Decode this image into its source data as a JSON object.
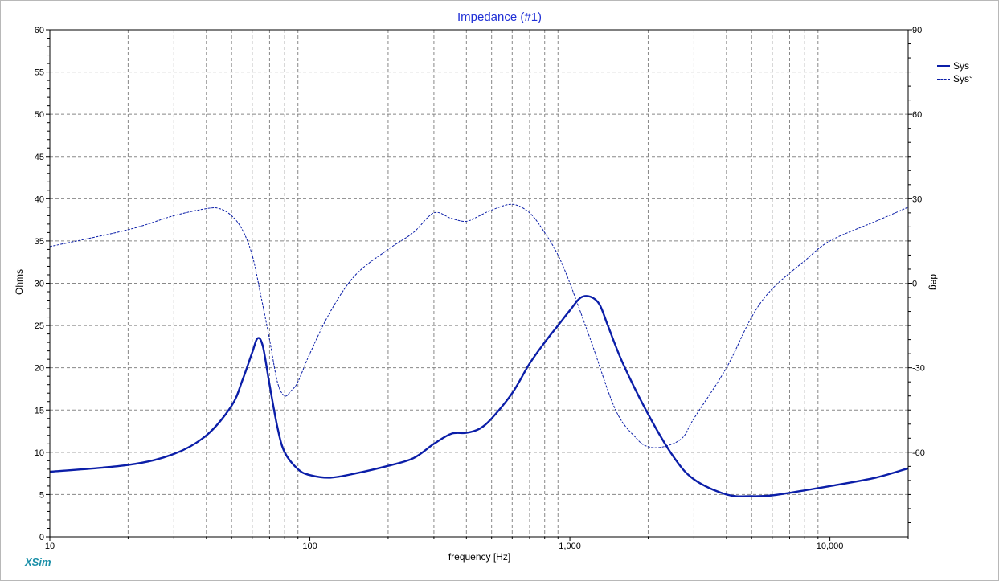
{
  "chart_data": {
    "type": "line",
    "title": "Impedance (#1)",
    "xlabel": "frequency [Hz]",
    "ylabel": "Ohms",
    "y2label": "deg",
    "xscale": "log",
    "xlim": [
      10,
      20000
    ],
    "ylim": [
      0,
      60
    ],
    "y2lim": [
      -90,
      90
    ],
    "grid": true,
    "legend_position": "top-right",
    "x_ticks": [
      {
        "value": 10,
        "label": "10"
      },
      {
        "value": 100,
        "label": "100"
      },
      {
        "value": 1000,
        "label": "1,000"
      },
      {
        "value": 10000,
        "label": "10,000"
      }
    ],
    "y_ticks": [
      "0",
      "5",
      "10",
      "15",
      "20",
      "25",
      "30",
      "35",
      "40",
      "45",
      "50",
      "55",
      "60"
    ],
    "y2_ticks": [
      "-60",
      "-30",
      "0",
      "30",
      "60",
      "90"
    ],
    "series": [
      {
        "name": "Sys",
        "axis": "left",
        "style": "solid",
        "color": "#0b1ea8",
        "x": [
          10,
          20,
          30,
          40,
          50,
          55,
          60,
          63,
          66,
          70,
          75,
          80,
          90,
          100,
          120,
          150,
          200,
          250,
          300,
          350,
          400,
          450,
          500,
          600,
          700,
          800,
          900,
          1000,
          1100,
          1200,
          1300,
          1400,
          1600,
          2000,
          2500,
          3000,
          4000,
          5000,
          6000,
          8000,
          10000,
          15000,
          20000
        ],
        "values": [
          7.7,
          8.5,
          9.8,
          12,
          15.5,
          18.5,
          21.8,
          23.5,
          22.5,
          18,
          13,
          10,
          8,
          7.3,
          7.0,
          7.5,
          8.4,
          9.3,
          11,
          12.2,
          12.3,
          12.8,
          14,
          17,
          20.5,
          23,
          25,
          26.8,
          28.3,
          28.4,
          27.5,
          25,
          20.5,
          14.5,
          9.5,
          6.8,
          5.0,
          4.8,
          4.9,
          5.5,
          6.0,
          7.0,
          8.1
        ]
      },
      {
        "name": "Sys°",
        "axis": "right",
        "style": "dashed",
        "color": "#0b1ea8",
        "x": [
          10,
          20,
          30,
          40,
          45,
          50,
          55,
          60,
          65,
          70,
          75,
          80,
          85,
          90,
          100,
          120,
          150,
          200,
          250,
          300,
          350,
          400,
          450,
          500,
          600,
          700,
          800,
          900,
          1000,
          1200,
          1500,
          1800,
          2000,
          2300,
          2700,
          3000,
          4000,
          5000,
          6000,
          8000,
          10000,
          15000,
          20000
        ],
        "values": [
          13,
          19,
          24,
          26.5,
          26.5,
          24,
          19,
          10,
          -5,
          -20,
          -35,
          -40,
          -38,
          -35,
          -25,
          -10,
          3,
          12,
          18,
          25,
          23,
          22,
          24,
          26,
          28,
          25,
          18,
          10,
          0,
          -20,
          -45,
          -55,
          -58,
          -58,
          -55,
          -48,
          -30,
          -12,
          -2,
          8,
          15,
          22,
          27
        ]
      }
    ]
  },
  "branding": {
    "label": "XSim"
  }
}
